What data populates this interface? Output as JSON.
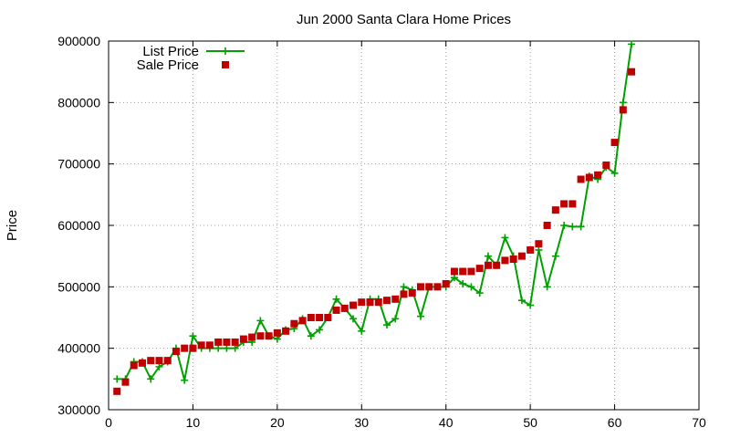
{
  "chart_data": {
    "type": "line",
    "title": "Jun 2000 Santa Clara Home Prices",
    "xlabel": "",
    "ylabel": "Price",
    "xlim": [
      0,
      70
    ],
    "ylim": [
      300000,
      900000
    ],
    "xticks": [
      0,
      10,
      20,
      30,
      40,
      50,
      60,
      70
    ],
    "yticks": [
      300000,
      400000,
      500000,
      600000,
      700000,
      800000,
      900000
    ],
    "grid": true,
    "legend_position": "top-left",
    "series": [
      {
        "name": "List Price",
        "style": "line-plus",
        "color": "#00a000",
        "x": [
          1,
          2,
          3,
          4,
          5,
          6,
          7,
          8,
          9,
          10,
          11,
          12,
          13,
          14,
          15,
          16,
          17,
          18,
          19,
          20,
          21,
          22,
          23,
          24,
          25,
          26,
          27,
          28,
          29,
          30,
          31,
          32,
          33,
          34,
          35,
          36,
          37,
          38,
          39,
          40,
          41,
          42,
          43,
          44,
          45,
          46,
          47,
          48,
          49,
          50,
          51,
          52,
          53,
          54,
          55,
          56,
          57,
          58,
          59,
          60,
          61,
          62
        ],
        "y": [
          350000,
          350000,
          378000,
          378000,
          350000,
          370000,
          378000,
          400000,
          348000,
          420000,
          400000,
          400000,
          400000,
          400000,
          400000,
          410000,
          410000,
          445000,
          420000,
          415000,
          430000,
          432000,
          448000,
          420000,
          430000,
          450000,
          480000,
          465000,
          448000,
          428000,
          480000,
          480000,
          438000,
          448000,
          500000,
          495000,
          452000,
          500000,
          500000,
          500000,
          515000,
          505000,
          500000,
          490000,
          550000,
          535000,
          580000,
          550000,
          478000,
          470000,
          560000,
          500000,
          550000,
          600000,
          598000,
          598000,
          680000,
          675000,
          695000,
          685000,
          800000,
          895000
        ]
      },
      {
        "name": "Sale Price",
        "style": "points-square",
        "color": "#c00000",
        "x": [
          1,
          2,
          3,
          4,
          5,
          6,
          7,
          8,
          9,
          10,
          11,
          12,
          13,
          14,
          15,
          16,
          17,
          18,
          19,
          20,
          21,
          22,
          23,
          24,
          25,
          26,
          27,
          28,
          29,
          30,
          31,
          32,
          33,
          34,
          35,
          36,
          37,
          38,
          39,
          40,
          41,
          42,
          43,
          44,
          45,
          46,
          47,
          48,
          49,
          50,
          51,
          52,
          53,
          54,
          55,
          56,
          57,
          58,
          59,
          60,
          61,
          62
        ],
        "y": [
          330000,
          345000,
          372000,
          376000,
          380000,
          380000,
          380000,
          395000,
          400000,
          400000,
          405000,
          405000,
          410000,
          410000,
          410000,
          415000,
          418000,
          420000,
          420000,
          425000,
          428000,
          440000,
          445000,
          450000,
          450000,
          450000,
          462000,
          465000,
          470000,
          475000,
          475000,
          475000,
          478000,
          480000,
          488000,
          490000,
          500000,
          500000,
          500000,
          505000,
          525000,
          525000,
          525000,
          530000,
          535000,
          535000,
          543000,
          545000,
          550000,
          560000,
          570000,
          600000,
          625000,
          635000,
          635000,
          675000,
          678000,
          682000,
          698000,
          735000,
          788000,
          850000
        ]
      }
    ]
  }
}
